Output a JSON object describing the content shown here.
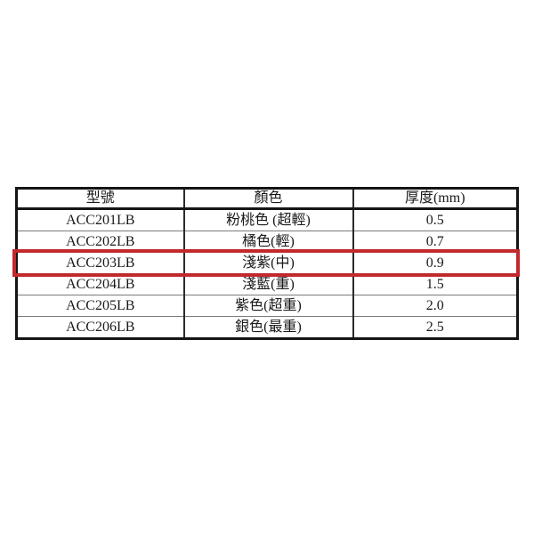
{
  "chart_data": {
    "type": "table",
    "title": "",
    "columns": [
      "型號",
      "顏色",
      "厚度(mm)"
    ],
    "rows": [
      [
        "ACC201LB",
        "粉桃色 (超輕)",
        "0.5"
      ],
      [
        "ACC202LB",
        "橘色(輕)",
        "0.7"
      ],
      [
        "ACC203LB",
        "淺紫(中)",
        "0.9"
      ],
      [
        "ACC204LB",
        "淺藍(重)",
        "1.5"
      ],
      [
        "ACC205LB",
        "紫色(超重)",
        "2.0"
      ],
      [
        "ACC206LB",
        "銀色(最重)",
        "2.5"
      ]
    ],
    "highlighted_row_index": 2,
    "highlighted_model": "ACC203LB",
    "annotation": {
      "shape": "rectangle-outline",
      "color": "#c1292e"
    },
    "layout": {
      "grid": "on",
      "background": "#ffffff",
      "border_color": "#151515"
    }
  }
}
